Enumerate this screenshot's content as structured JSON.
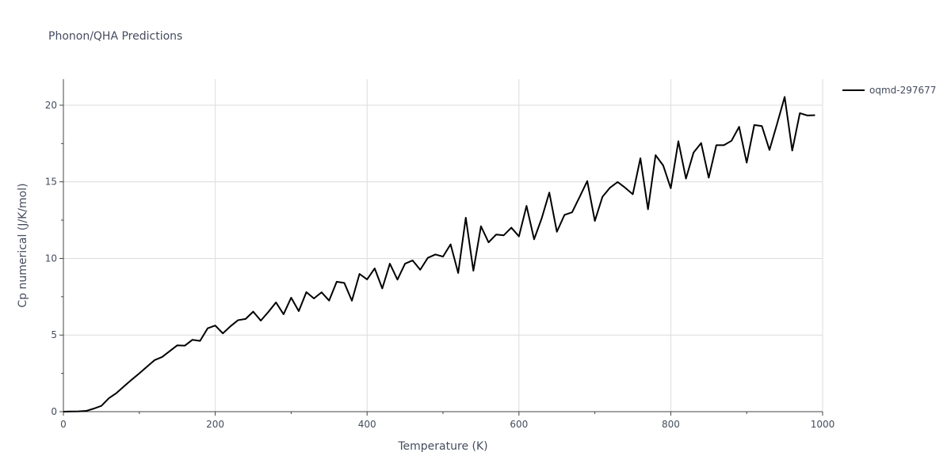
{
  "chart_data": {
    "type": "line",
    "title": "Phonon/QHA Predictions",
    "xlabel": "Temperature (K)",
    "ylabel": "Cp numerical (J/K/mol)",
    "xlim": [
      0,
      1000
    ],
    "ylim": [
      0,
      21.7
    ],
    "xticks": [
      0,
      200,
      400,
      600,
      800,
      1000
    ],
    "yticks": [
      0,
      5,
      10,
      15,
      20
    ],
    "grid": true,
    "legend_position": "top-right",
    "series": [
      {
        "name": "oqmd-297677",
        "color": "#000000",
        "x": [
          0,
          10,
          20,
          30,
          40,
          50,
          60,
          70,
          80,
          90,
          100,
          110,
          120,
          130,
          140,
          150,
          160,
          170,
          180,
          190,
          200,
          210,
          220,
          230,
          240,
          250,
          260,
          270,
          280,
          290,
          300,
          310,
          320,
          330,
          340,
          350,
          360,
          370,
          380,
          390,
          400,
          410,
          420,
          430,
          440,
          450,
          460,
          470,
          480,
          490,
          500,
          510,
          520,
          530,
          540,
          550,
          560,
          570,
          580,
          590,
          600,
          610,
          620,
          630,
          640,
          650,
          660,
          670,
          680,
          690,
          700,
          710,
          720,
          730,
          740,
          750,
          760,
          770,
          780,
          790,
          800,
          810,
          820,
          830,
          840,
          850,
          860,
          870,
          880,
          890,
          900,
          910,
          920,
          930,
          940,
          950,
          960,
          970,
          980,
          990
        ],
        "y": [
          0,
          0.01,
          0.02,
          0.05,
          0.2,
          0.38,
          0.88,
          1.22,
          1.66,
          2.09,
          2.5,
          2.93,
          3.36,
          3.57,
          3.95,
          4.33,
          4.31,
          4.69,
          4.62,
          5.44,
          5.62,
          5.11,
          5.57,
          5.97,
          6.05,
          6.53,
          5.94,
          6.51,
          7.13,
          6.36,
          7.44,
          6.56,
          7.8,
          7.39,
          7.79,
          7.25,
          8.48,
          8.4,
          7.24,
          8.99,
          8.63,
          9.35,
          8.04,
          9.66,
          8.62,
          9.66,
          9.87,
          9.26,
          10.04,
          10.26,
          10.12,
          10.92,
          9.05,
          12.66,
          9.2,
          12.1,
          11.05,
          11.56,
          11.51,
          12.01,
          11.44,
          13.43,
          11.25,
          12.62,
          14.3,
          11.74,
          12.84,
          13.01,
          14.02,
          15.05,
          12.45,
          14.02,
          14.62,
          14.99,
          14.61,
          14.19,
          16.54,
          13.21,
          16.74,
          16.07,
          14.58,
          17.65,
          15.21,
          16.91,
          17.53,
          15.27,
          17.39,
          17.39,
          17.68,
          18.59,
          16.25,
          18.71,
          18.64,
          17.08,
          18.78,
          20.54,
          17.04,
          19.48,
          19.33,
          19.35
        ]
      }
    ]
  }
}
